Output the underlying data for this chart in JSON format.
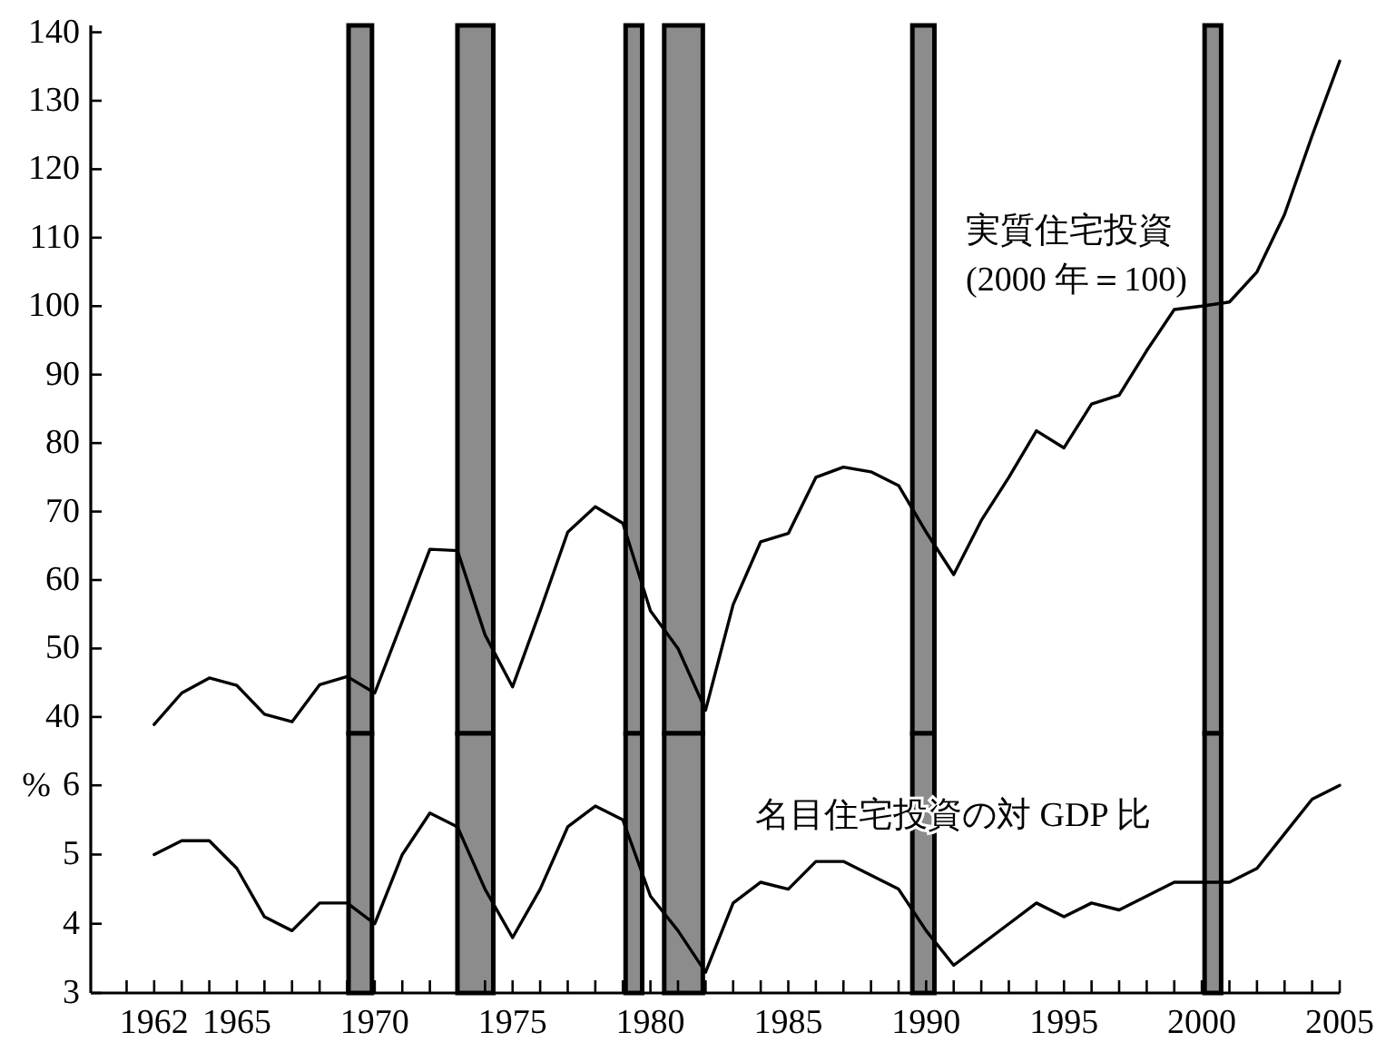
{
  "chart_data": [
    {
      "type": "line",
      "xlim": [
        1959.7,
        2005
      ],
      "ylim": [
        37.6,
        141
      ],
      "yticks": [
        40,
        50,
        60,
        70,
        80,
        90,
        100,
        110,
        120,
        130,
        140
      ],
      "tick_labels": "y",
      "x": [
        1962,
        1963,
        1964,
        1965,
        1966,
        1967,
        1968,
        1969,
        1970,
        1971,
        1972,
        1973,
        1974,
        1975,
        1976,
        1977,
        1978,
        1979,
        1980,
        1981,
        1982,
        1983,
        1984,
        1985,
        1986,
        1987,
        1988,
        1989,
        1990,
        1991,
        1992,
        1993,
        1994,
        1995,
        1996,
        1997,
        1998,
        1999,
        2000,
        2001,
        2002,
        2003,
        2004,
        2005
      ],
      "series": [
        {
          "name": "実質住宅投資\n(2000 年＝100)",
          "color": "#000000",
          "values": [
            38.9,
            43.5,
            45.7,
            44.6,
            40.4,
            39.3,
            44.7,
            45.9,
            43.5,
            54,
            64.5,
            64.3,
            52,
            44.4,
            55.5,
            67,
            70.7,
            68.3,
            55.5,
            50,
            41,
            56.4,
            65.6,
            66.8,
            75,
            76.5,
            75.8,
            73.8,
            67,
            60.8,
            68.7,
            75,
            81.8,
            79.3,
            85.7,
            87,
            93.5,
            99.5,
            100,
            100.6,
            105,
            113.4,
            124.9,
            135.8
          ]
        }
      ],
      "bands": [
        {
          "axis": "x",
          "from": 1969.05,
          "to": 1969.9,
          "color": "#8c8c8c"
        },
        {
          "axis": "x",
          "from": 1973.0,
          "to": 1974.3,
          "color": "#8c8c8c"
        },
        {
          "axis": "x",
          "from": 1979.1,
          "to": 1979.7,
          "color": "#8c8c8c"
        },
        {
          "axis": "x",
          "from": 1980.5,
          "to": 1981.9,
          "color": "#8c8c8c"
        },
        {
          "axis": "x",
          "from": 1989.5,
          "to": 1990.3,
          "color": "#8c8c8c"
        },
        {
          "axis": "x",
          "from": 2000.1,
          "to": 2000.7,
          "color": "#8c8c8c"
        }
      ]
    },
    {
      "type": "line",
      "xlim": [
        1959.7,
        2005
      ],
      "ylim": [
        3,
        6.75
      ],
      "yticks": [
        3,
        4,
        5,
        6
      ],
      "ylabel": "%",
      "xticks": [
        {
          "value": 1961,
          "label": null
        },
        1962,
        {
          "value": 1963,
          "label": null
        },
        {
          "value": 1964,
          "label": null
        },
        1965,
        {
          "value": 1966,
          "label": null
        },
        {
          "value": 1967,
          "label": null
        },
        {
          "value": 1968,
          "label": null
        },
        {
          "value": 1969,
          "label": null
        },
        1970,
        {
          "value": 1971,
          "label": null
        },
        {
          "value": 1972,
          "label": null
        },
        {
          "value": 1973,
          "label": null
        },
        {
          "value": 1974,
          "label": null
        },
        1975,
        {
          "value": 1976,
          "label": null
        },
        {
          "value": 1977,
          "label": null
        },
        {
          "value": 1978,
          "label": null
        },
        {
          "value": 1979,
          "label": null
        },
        1980,
        {
          "value": 1981,
          "label": null
        },
        {
          "value": 1982,
          "label": null
        },
        {
          "value": 1983,
          "label": null
        },
        {
          "value": 1984,
          "label": null
        },
        1985,
        {
          "value": 1986,
          "label": null
        },
        {
          "value": 1987,
          "label": null
        },
        {
          "value": 1988,
          "label": null
        },
        {
          "value": 1989,
          "label": null
        },
        1990,
        {
          "value": 1991,
          "label": null
        },
        {
          "value": 1992,
          "label": null
        },
        {
          "value": 1993,
          "label": null
        },
        {
          "value": 1994,
          "label": null
        },
        1995,
        {
          "value": 1996,
          "label": null
        },
        {
          "value": 1997,
          "label": null
        },
        {
          "value": 1998,
          "label": null
        },
        {
          "value": 1999,
          "label": null
        },
        2000,
        {
          "value": 2001,
          "label": null
        },
        {
          "value": 2002,
          "label": null
        },
        {
          "value": 2003,
          "label": null
        },
        {
          "value": 2004,
          "label": null
        },
        2005
      ],
      "x": [
        1962,
        1963,
        1964,
        1965,
        1966,
        1967,
        1968,
        1969,
        1970,
        1971,
        1972,
        1973,
        1974,
        1975,
        1976,
        1977,
        1978,
        1979,
        1980,
        1981,
        1982,
        1983,
        1984,
        1985,
        1986,
        1987,
        1988,
        1989,
        1990,
        1991,
        1992,
        1993,
        1994,
        1995,
        1996,
        1997,
        1998,
        1999,
        2000,
        2001,
        2002,
        2003,
        2004,
        2005
      ],
      "series": [
        {
          "name": "名目住宅投資の対 GDP 比",
          "color": "#000000",
          "values": [
            5.0,
            5.2,
            5.2,
            4.8,
            4.1,
            3.9,
            4.3,
            4.3,
            4.0,
            5.0,
            5.6,
            5.4,
            4.5,
            3.8,
            4.5,
            5.4,
            5.7,
            5.5,
            4.4,
            3.9,
            3.3,
            4.3,
            4.6,
            4.5,
            4.9,
            4.9,
            4.7,
            4.5,
            3.9,
            3.4,
            3.7,
            4.0,
            4.3,
            4.1,
            4.3,
            4.2,
            4.4,
            4.6,
            4.6,
            4.6,
            4.8,
            5.3,
            5.8,
            6.0
          ]
        }
      ],
      "bands": [
        {
          "axis": "x",
          "from": 1969.05,
          "to": 1969.9,
          "color": "#8c8c8c"
        },
        {
          "axis": "x",
          "from": 1973.0,
          "to": 1974.3,
          "color": "#8c8c8c"
        },
        {
          "axis": "x",
          "from": 1979.1,
          "to": 1979.7,
          "color": "#8c8c8c"
        },
        {
          "axis": "x",
          "from": 1980.5,
          "to": 1981.9,
          "color": "#8c8c8c"
        },
        {
          "axis": "x",
          "from": 1989.5,
          "to": 1990.3,
          "color": "#8c8c8c"
        },
        {
          "axis": "x",
          "from": 2000.1,
          "to": 2000.7,
          "color": "#8c8c8c"
        }
      ]
    }
  ]
}
